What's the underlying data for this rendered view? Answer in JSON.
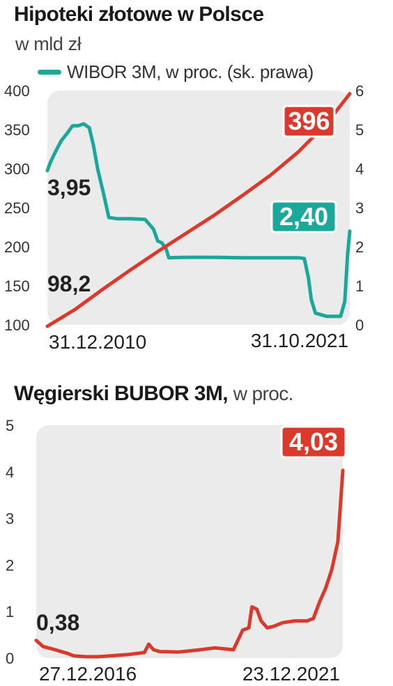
{
  "chart_data": [
    {
      "type": "line",
      "title": "Hipoteki złotowe w Polsce",
      "subtitle": "w mld zł",
      "legend": "WIBOR 3M, w proc. (sk. prawa)",
      "x_start_label": "31.12.2010",
      "x_end_label": "31.10.2021",
      "ylim": [
        100,
        400
      ],
      "y_ticks": [
        "100",
        "150",
        "200",
        "250",
        "300",
        "350",
        "400"
      ],
      "y2lim": [
        0,
        6
      ],
      "y2_ticks": [
        "0",
        "1",
        "2",
        "3",
        "4",
        "5",
        "6"
      ],
      "grid": false,
      "colors": {
        "mortgages": "#d93a2b",
        "wibor": "#1aa89a",
        "plot_bg": "#ebebeb"
      },
      "series": [
        {
          "axis": "left",
          "x": [
            2011.0,
            2012.0,
            2013.0,
            2014.0,
            2015.0,
            2016.0,
            2017.0,
            2018.0,
            2019.0,
            2020.0,
            2021.0,
            2021.83
          ],
          "values": [
            98.2,
            120,
            146,
            171,
            195,
            218,
            241,
            266,
            292,
            322,
            358,
            396
          ],
          "start_label": "98,2",
          "end_label": "396"
        },
        {
          "axis": "right",
          "x": [
            2011.0,
            2011.1,
            2011.3,
            2011.5,
            2011.7,
            2011.9,
            2012.1,
            2012.3,
            2012.5,
            2012.65,
            2012.8,
            2013.0,
            2013.2,
            2013.5,
            2014.0,
            2014.5,
            2014.8,
            2014.95,
            2015.1,
            2015.25,
            2015.35,
            2016.0,
            2017.0,
            2018.0,
            2019.0,
            2020.0,
            2020.2,
            2020.35,
            2020.45,
            2020.6,
            2021.0,
            2021.5,
            2021.65,
            2021.75,
            2021.83
          ],
          "values": [
            3.95,
            4.15,
            4.45,
            4.72,
            4.9,
            5.1,
            5.1,
            5.15,
            5.05,
            4.6,
            4.0,
            3.4,
            2.75,
            2.72,
            2.72,
            2.7,
            2.45,
            2.15,
            2.1,
            1.95,
            1.72,
            1.73,
            1.73,
            1.72,
            1.72,
            1.72,
            1.7,
            1.2,
            0.65,
            0.3,
            0.22,
            0.22,
            0.6,
            1.8,
            2.4
          ],
          "start_label": "3,95",
          "end_label": "2,40"
        }
      ]
    },
    {
      "type": "line",
      "title_bold": "Węgierski BUBOR 3M,",
      "title_rest": "w proc.",
      "x_start_label": "27.12.2016",
      "x_end_label": "23.12.2021",
      "ylim": [
        0,
        5
      ],
      "y_ticks": [
        "0",
        "1",
        "2",
        "3",
        "4",
        "5"
      ],
      "grid": false,
      "colors": {
        "line": "#d93a2b",
        "plot_bg": "#ebebeb"
      },
      "series": [
        {
          "x": [
            2016.99,
            2017.1,
            2017.3,
            2017.5,
            2017.6,
            2017.8,
            2018.0,
            2018.2,
            2018.5,
            2018.75,
            2018.82,
            2018.9,
            2019.0,
            2019.3,
            2019.6,
            2019.9,
            2020.2,
            2020.35,
            2020.45,
            2020.5,
            2020.58,
            2020.65,
            2020.75,
            2020.85,
            2021.0,
            2021.2,
            2021.4,
            2021.5,
            2021.6,
            2021.7,
            2021.8,
            2021.9,
            2021.98
          ],
          "values": [
            0.38,
            0.25,
            0.18,
            0.1,
            0.05,
            0.03,
            0.03,
            0.05,
            0.08,
            0.12,
            0.3,
            0.18,
            0.14,
            0.13,
            0.17,
            0.22,
            0.18,
            0.6,
            0.65,
            1.1,
            1.05,
            0.8,
            0.65,
            0.68,
            0.76,
            0.8,
            0.8,
            0.85,
            1.2,
            1.5,
            1.9,
            2.5,
            4.03
          ],
          "start_label": "0,38",
          "end_label": "4,03"
        }
      ]
    }
  ]
}
